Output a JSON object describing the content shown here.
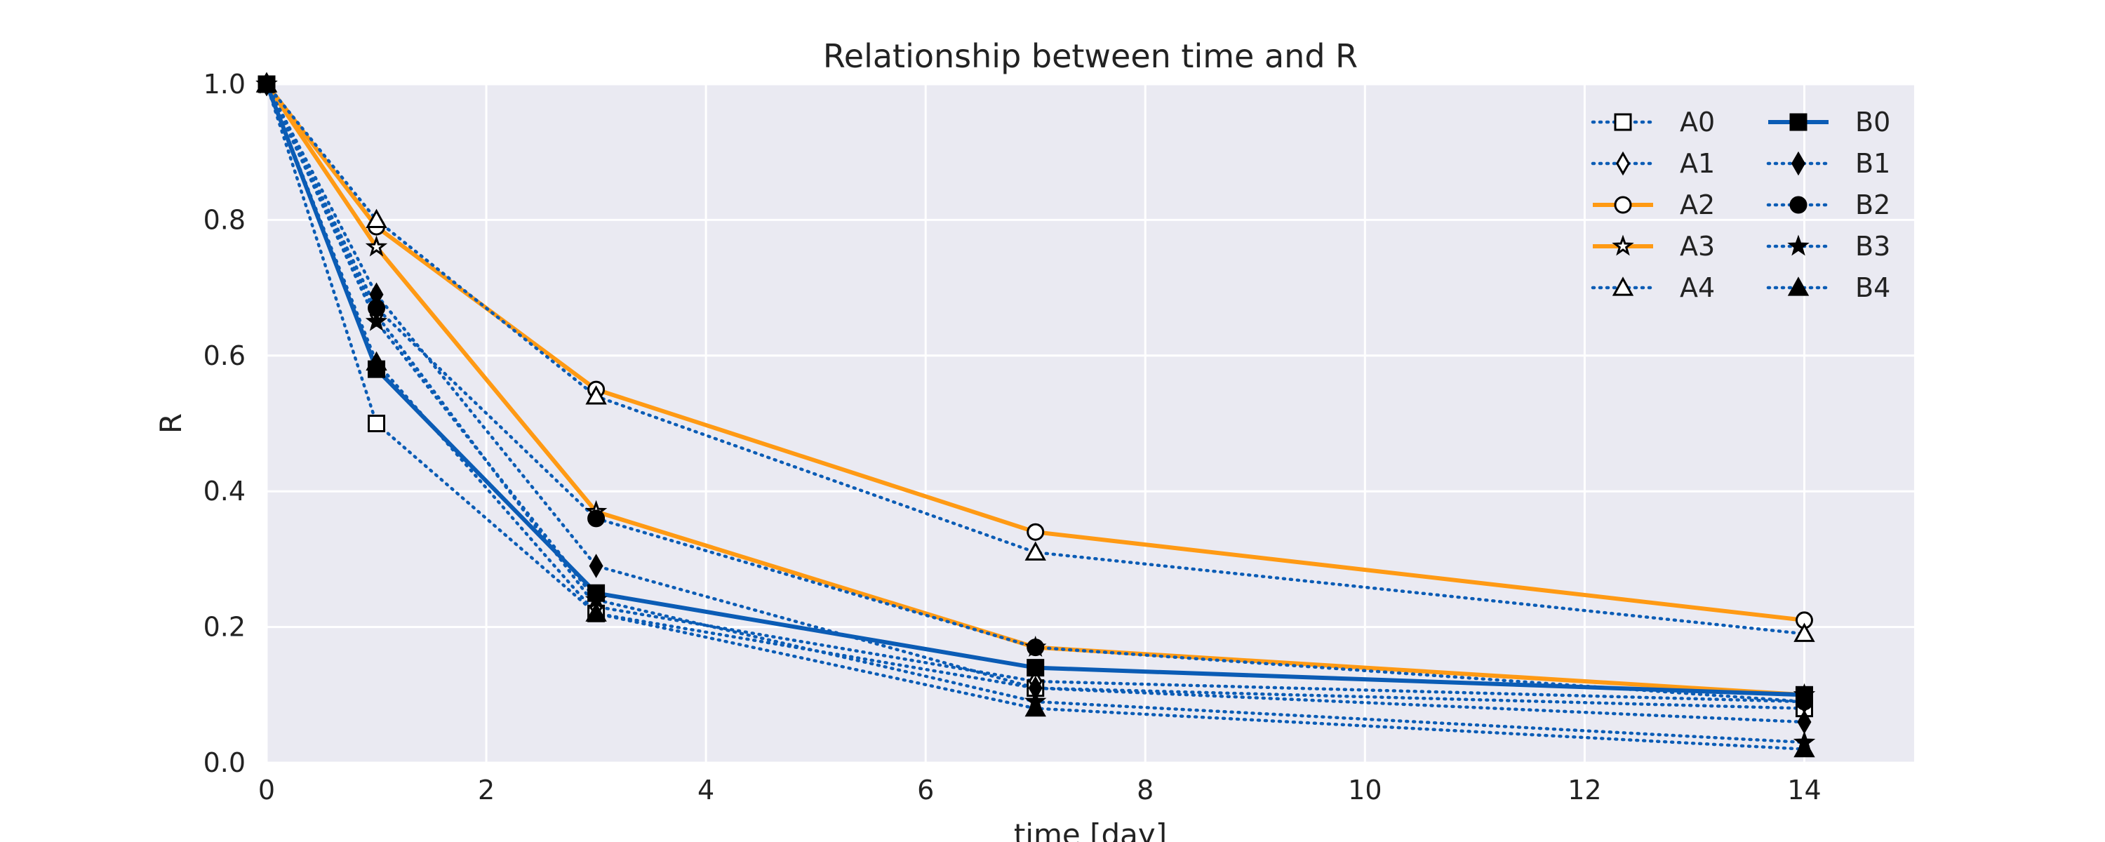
{
  "chart_data": {
    "type": "line",
    "title": "Relationship between time and R",
    "xlabel": "time [day]",
    "ylabel": "R",
    "xlim": [
      0,
      15
    ],
    "ylim": [
      0,
      1.0
    ],
    "xticks": [
      "0",
      "2",
      "4",
      "6",
      "8",
      "10",
      "12",
      "14"
    ],
    "yticks": [
      "0.0",
      "0.2",
      "0.4",
      "0.6",
      "0.8",
      "1.0"
    ],
    "grid": true,
    "legend_position": "top-right",
    "legend_columns": 2,
    "x": [
      0,
      1,
      3,
      7,
      14
    ],
    "series": [
      {
        "name": "A0",
        "values": [
          1.0,
          0.5,
          0.22,
          0.11,
          0.08
        ],
        "color": "#0b5cb5",
        "line": "dotted",
        "marker": "square",
        "fill": "open"
      },
      {
        "name": "A1",
        "values": [
          1.0,
          0.66,
          0.23,
          0.12,
          0.09
        ],
        "color": "#0b5cb5",
        "line": "dotted",
        "marker": "diamond",
        "fill": "open"
      },
      {
        "name": "A2",
        "values": [
          1.0,
          0.79,
          0.55,
          0.34,
          0.21
        ],
        "color": "#ff9a14",
        "line": "solid",
        "marker": "circle",
        "fill": "open"
      },
      {
        "name": "A3",
        "values": [
          1.0,
          0.76,
          0.37,
          0.17,
          0.1
        ],
        "color": "#ff9a14",
        "line": "solid",
        "marker": "star",
        "fill": "open"
      },
      {
        "name": "A4",
        "values": [
          1.0,
          0.8,
          0.54,
          0.31,
          0.19
        ],
        "color": "#0b5cb5",
        "line": "dotted",
        "marker": "triangle",
        "fill": "open"
      },
      {
        "name": "B0",
        "values": [
          1.0,
          0.58,
          0.25,
          0.14,
          0.1
        ],
        "color": "#0b5cb5",
        "line": "solid",
        "marker": "square",
        "fill": "filled"
      },
      {
        "name": "B1",
        "values": [
          1.0,
          0.69,
          0.29,
          0.11,
          0.06
        ],
        "color": "#0b5cb5",
        "line": "dotted",
        "marker": "diamond",
        "fill": "filled"
      },
      {
        "name": "B2",
        "values": [
          1.0,
          0.67,
          0.36,
          0.17,
          0.09
        ],
        "color": "#0b5cb5",
        "line": "dotted",
        "marker": "circle",
        "fill": "filled"
      },
      {
        "name": "B3",
        "values": [
          1.0,
          0.65,
          0.24,
          0.09,
          0.03
        ],
        "color": "#0b5cb5",
        "line": "dotted",
        "marker": "star",
        "fill": "filled"
      },
      {
        "name": "B4",
        "values": [
          1.0,
          0.59,
          0.22,
          0.08,
          0.02
        ],
        "color": "#0b5cb5",
        "line": "dotted",
        "marker": "triangle",
        "fill": "filled"
      }
    ]
  }
}
